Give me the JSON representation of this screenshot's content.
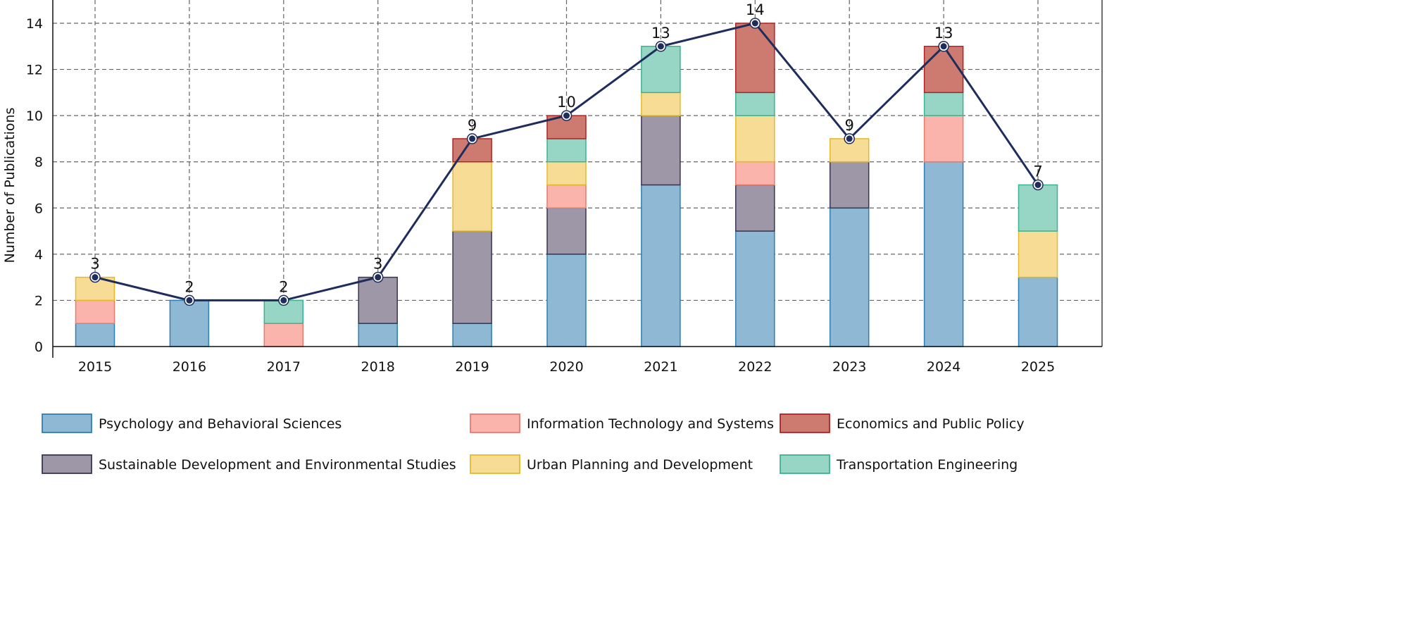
{
  "chart_data": {
    "type": "bar",
    "stacked": true,
    "title": "",
    "xlabel": "",
    "ylabel": "Number of Publications",
    "ylim": [
      0,
      14
    ],
    "yticks": [
      0,
      2,
      4,
      6,
      8,
      10,
      12,
      14
    ],
    "grid": true,
    "legend_position": "bottom",
    "categories": [
      "2015",
      "2016",
      "2017",
      "2018",
      "2019",
      "2020",
      "2021",
      "2022",
      "2023",
      "2024",
      "2025"
    ],
    "series": [
      {
        "name": "Psychology and Behavioral Sciences",
        "fill": "#8fb8d4",
        "stroke": "#2e7fb3",
        "values": [
          1,
          2,
          0,
          1,
          1,
          4,
          7,
          5,
          6,
          8,
          3
        ]
      },
      {
        "name": "Sustainable Development and Environmental Studies",
        "fill": "#9d97a8",
        "stroke": "#3a3550",
        "values": [
          0,
          0,
          0,
          2,
          4,
          2,
          3,
          2,
          2,
          0,
          0
        ]
      },
      {
        "name": "Information Technology and Systems",
        "fill": "#fbb4ab",
        "stroke": "#e87a6e",
        "values": [
          1,
          0,
          1,
          0,
          0,
          1,
          0,
          1,
          0,
          2,
          0
        ]
      },
      {
        "name": "Urban Planning and Development",
        "fill": "#f6dc95",
        "stroke": "#e5b92e",
        "values": [
          1,
          0,
          0,
          0,
          3,
          1,
          1,
          2,
          1,
          0,
          2
        ]
      },
      {
        "name": "Transportation Engineering",
        "fill": "#97d6c4",
        "stroke": "#3bb393",
        "values": [
          0,
          0,
          1,
          0,
          0,
          1,
          2,
          1,
          0,
          1,
          2
        ]
      },
      {
        "name": "Economics and Public Policy",
        "fill": "#cd7b70",
        "stroke": "#b22222",
        "values": [
          0,
          0,
          0,
          0,
          1,
          1,
          0,
          3,
          0,
          2,
          0
        ]
      }
    ],
    "total_line": {
      "color": "#1f2d5c",
      "values": [
        3,
        2,
        2,
        3,
        9,
        10,
        13,
        14,
        9,
        13,
        7
      ]
    },
    "legend_order": [
      0,
      2,
      5,
      1,
      3,
      4
    ]
  }
}
